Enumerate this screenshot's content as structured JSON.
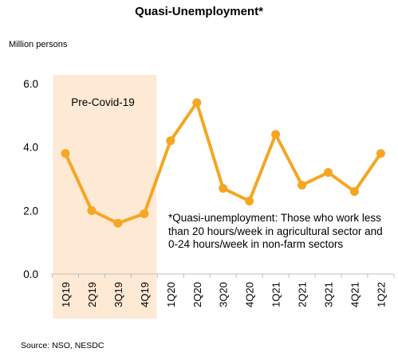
{
  "chart_data": {
    "type": "line",
    "title": "Quasi-Unemployment*",
    "ylabel": "Million persons",
    "xlabel": "",
    "categories": [
      "1Q19",
      "2Q19",
      "3Q19",
      "4Q19",
      "1Q20",
      "2Q20",
      "3Q20",
      "4Q20",
      "1Q21",
      "2Q21",
      "3Q21",
      "4Q21",
      "1Q22"
    ],
    "series": [
      {
        "values": [
          3.8,
          2.0,
          1.6,
          1.9,
          4.2,
          5.4,
          2.7,
          2.3,
          4.4,
          2.8,
          3.2,
          2.6,
          3.8
        ]
      }
    ],
    "ylim": [
      0,
      6
    ],
    "yticks": [
      "0.0",
      "2.0",
      "4.0",
      "6.0"
    ],
    "shaded_region": {
      "label": "Pre-Covid-19",
      "from": "1Q19",
      "to": "4Q19",
      "color": "#fde9d4"
    },
    "line_color": "#f5a623",
    "grid": false,
    "legend": "none",
    "annotation": "*Quasi-unemployment: Those who work less than 20 hours/week in agricultural sector and 0-24 hours/week in non-farm sectors",
    "source": "Source:  NSO, NESDC"
  }
}
